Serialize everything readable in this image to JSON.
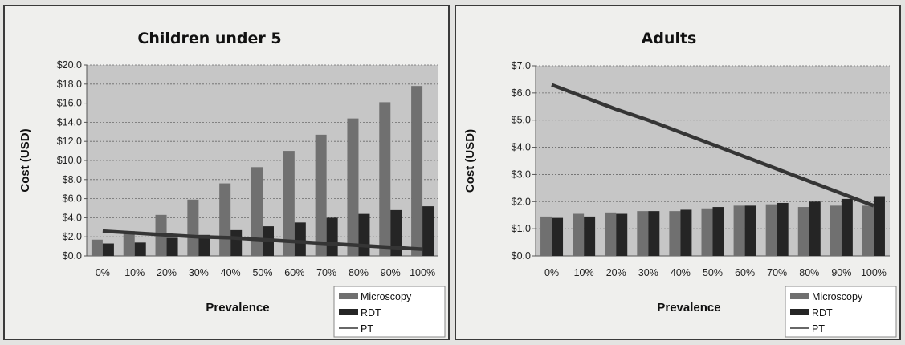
{
  "colors": {
    "microscopy": "#707070",
    "rdt": "#252525",
    "pt": "#353535",
    "plot_bg": "#c6c6c6"
  },
  "chart_data": [
    {
      "type": "bar",
      "title": "Children under 5",
      "xlabel": "Prevalence",
      "ylabel": "Cost (USD)",
      "categories": [
        "0%",
        "10%",
        "20%",
        "30%",
        "40%",
        "50%",
        "60%",
        "70%",
        "80%",
        "90%",
        "100%"
      ],
      "ylim": [
        0,
        20
      ],
      "y_ticks": [
        0,
        2,
        4,
        6,
        8,
        10,
        12,
        14,
        16,
        18,
        20
      ],
      "y_tick_labels": [
        "$0.0",
        "$2.0",
        "$4.0",
        "$6.0",
        "$8.0",
        "$10.0",
        "$12.0",
        "$14.0",
        "$16.0",
        "$18.0",
        "$20.0"
      ],
      "grid": true,
      "legend_position": "bottom-right",
      "series": [
        {
          "name": "Microscopy",
          "kind": "bar",
          "values": [
            1.7,
            2.6,
            4.3,
            5.9,
            7.6,
            9.3,
            11.0,
            12.7,
            14.4,
            16.1,
            17.8
          ]
        },
        {
          "name": "RDT",
          "kind": "bar",
          "values": [
            1.3,
            1.4,
            1.9,
            2.2,
            2.7,
            3.1,
            3.5,
            4.0,
            4.4,
            4.8,
            5.2
          ]
        },
        {
          "name": "PT",
          "kind": "line",
          "values": [
            2.6,
            2.4,
            2.2,
            2.0,
            1.9,
            1.7,
            1.5,
            1.3,
            1.1,
            0.9,
            0.7
          ]
        }
      ]
    },
    {
      "type": "bar",
      "title": "Adults",
      "xlabel": "Prevalence",
      "ylabel": "Cost (USD)",
      "categories": [
        "0%",
        "10%",
        "20%",
        "30%",
        "40%",
        "50%",
        "60%",
        "70%",
        "80%",
        "90%",
        "100%"
      ],
      "ylim": [
        0,
        7
      ],
      "y_ticks": [
        0,
        1,
        2,
        3,
        4,
        5,
        6,
        7
      ],
      "y_tick_labels": [
        "$0.0",
        "$1.0",
        "$2.0",
        "$3.0",
        "$4.0",
        "$5.0",
        "$6.0",
        "$7.0"
      ],
      "grid": true,
      "legend_position": "bottom-right",
      "series": [
        {
          "name": "Microscopy",
          "kind": "bar",
          "values": [
            1.45,
            1.55,
            1.6,
            1.65,
            1.65,
            1.75,
            1.85,
            1.9,
            1.8,
            1.85,
            1.85
          ]
        },
        {
          "name": "RDT",
          "kind": "bar",
          "values": [
            1.4,
            1.45,
            1.55,
            1.65,
            1.7,
            1.8,
            1.85,
            1.95,
            2.0,
            2.1,
            2.2
          ]
        },
        {
          "name": "PT",
          "kind": "line",
          "values": [
            6.3,
            5.85,
            5.4,
            5.0,
            4.55,
            4.1,
            3.65,
            3.2,
            2.75,
            2.3,
            1.85
          ]
        }
      ]
    }
  ]
}
